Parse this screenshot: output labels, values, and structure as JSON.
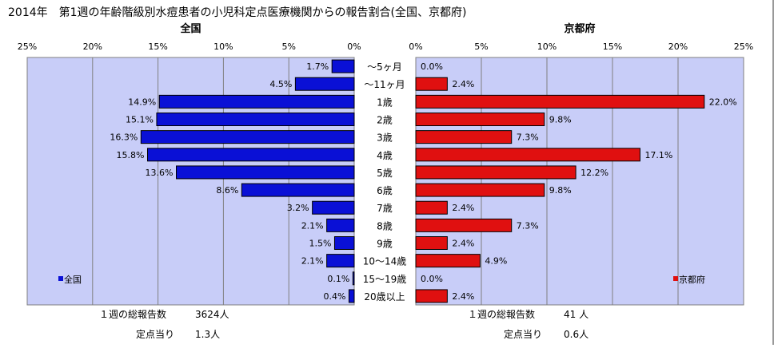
{
  "title": "2014年　第1週の年齢階級別水痘患者の小児科定点医療機関からの報告割合(全国、京都府)",
  "colors": {
    "national": "#0a10d6",
    "kyoto": "#e01010",
    "plot_bg": "#c8cdf8",
    "frame": "#808080"
  },
  "chart_data": [
    {
      "type": "bar",
      "orientation": "horizontal",
      "direction": "left",
      "panel_title": "全国",
      "categories": [
        "～5ヶ月",
        "～11ヶ月",
        "1歳",
        "2歳",
        "3歳",
        "4歳",
        "5歳",
        "6歳",
        "7歳",
        "8歳",
        "9歳",
        "10～14歳",
        "15～19歳",
        "20歳以上"
      ],
      "series": [
        {
          "name": "全国",
          "values": [
            1.7,
            4.5,
            14.9,
            15.1,
            16.3,
            15.8,
            13.6,
            8.6,
            3.2,
            2.1,
            1.5,
            2.1,
            0.1,
            0.4
          ]
        }
      ],
      "value_labels": [
        "1.7%",
        "4.5%",
        "14.9%",
        "15.1%",
        "16.3%",
        "15.8%",
        "13.6%",
        "8.6%",
        "3.2%",
        "2.1%",
        "1.5%",
        "2.1%",
        "0.1%",
        "0.4%"
      ],
      "xlim": [
        0,
        25
      ],
      "ticks": [
        "25%",
        "20%",
        "15%",
        "10%",
        "5%",
        "0%"
      ],
      "grid": true,
      "legend": "bottom-left"
    },
    {
      "type": "bar",
      "orientation": "horizontal",
      "direction": "right",
      "panel_title": "京都府",
      "categories": [
        "～5ヶ月",
        "～11ヶ月",
        "1歳",
        "2歳",
        "3歳",
        "4歳",
        "5歳",
        "6歳",
        "7歳",
        "8歳",
        "9歳",
        "10～14歳",
        "15～19歳",
        "20歳以上"
      ],
      "series": [
        {
          "name": "京都府",
          "values": [
            0.0,
            2.4,
            22.0,
            9.8,
            7.3,
            17.1,
            12.2,
            9.8,
            2.4,
            7.3,
            2.4,
            4.9,
            0.0,
            2.4
          ]
        }
      ],
      "value_labels": [
        "0.0%",
        "2.4%",
        "22.0%",
        "9.8%",
        "7.3%",
        "17.1%",
        "12.2%",
        "9.8%",
        "2.4%",
        "7.3%",
        "2.4%",
        "4.9%",
        "0.0%",
        "2.4%"
      ],
      "xlim": [
        0,
        25
      ],
      "ticks": [
        "0%",
        "5%",
        "10%",
        "15%",
        "20%",
        "25%"
      ],
      "grid": true,
      "legend": "bottom-right"
    }
  ],
  "summary": {
    "national": {
      "reports_label": "１週の総報告数",
      "reports_value": "3624人",
      "per_site_label": "定点当り",
      "per_site_value": "1.3人"
    },
    "kyoto": {
      "reports_label": "１週の総報告数",
      "reports_value": "41 人",
      "per_site_label": "定点当り",
      "per_site_value": "0.6人"
    }
  }
}
